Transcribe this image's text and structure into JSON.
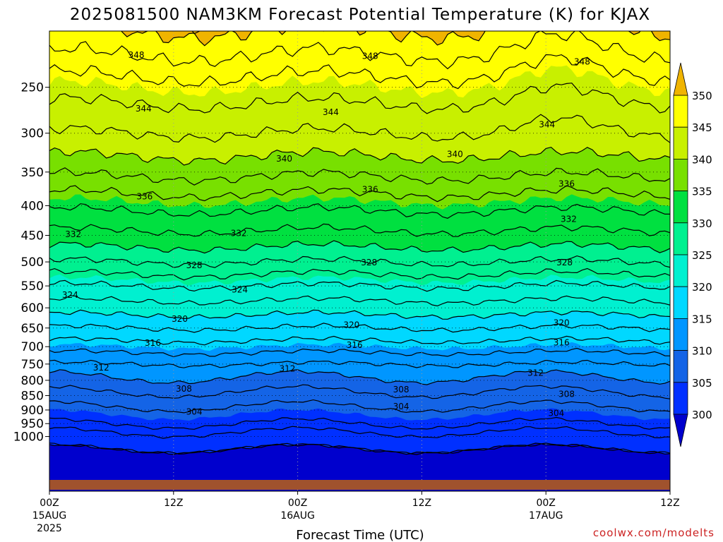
{
  "chart_data": {
    "type": "heatmap",
    "title": "2025081500 NAM3KM Forecast Potential Temperature (K) for KJAX",
    "xlabel": "Forecast Time (UTC)",
    "ylabel": "",
    "credit": "coolwx.com/modelts",
    "x_ticks": [
      {
        "hour": 0,
        "label": "00Z",
        "sub1": "15AUG",
        "sub2": "2025"
      },
      {
        "hour": 12,
        "label": "12Z",
        "sub1": "",
        "sub2": ""
      },
      {
        "hour": 24,
        "label": "00Z",
        "sub1": "16AUG",
        "sub2": ""
      },
      {
        "hour": 36,
        "label": "12Z",
        "sub1": "",
        "sub2": ""
      },
      {
        "hour": 48,
        "label": "00Z",
        "sub1": "17AUG",
        "sub2": ""
      },
      {
        "hour": 60,
        "label": "12Z",
        "sub1": "",
        "sub2": ""
      }
    ],
    "xlim": [
      0,
      60
    ],
    "y_axis": {
      "quantity": "pressure (hPa)",
      "scale": "log",
      "reversed": true,
      "ylim": [
        1025,
        200
      ],
      "ticks": [
        250,
        300,
        350,
        400,
        450,
        500,
        550,
        600,
        650,
        700,
        750,
        800,
        850,
        900,
        950,
        1000
      ]
    },
    "grid": "dotted",
    "colorbar": {
      "placement": "right",
      "ticks": [
        350,
        345,
        340,
        335,
        330,
        325,
        320,
        315,
        310,
        305,
        300
      ],
      "levels": [
        {
          "min": 350,
          "max": null,
          "color": "#f0b400"
        },
        {
          "min": 345,
          "max": 350,
          "color": "#ffff00"
        },
        {
          "min": 340,
          "max": 345,
          "color": "#c8f000"
        },
        {
          "min": 335,
          "max": 340,
          "color": "#78e000"
        },
        {
          "min": 330,
          "max": 335,
          "color": "#00e040"
        },
        {
          "min": 325,
          "max": 330,
          "color": "#00f090"
        },
        {
          "min": 320,
          "max": 325,
          "color": "#00f0d0"
        },
        {
          "min": 315,
          "max": 320,
          "color": "#00d8ff"
        },
        {
          "min": 310,
          "max": 315,
          "color": "#0096ff"
        },
        {
          "min": 305,
          "max": 310,
          "color": "#1464e6"
        },
        {
          "min": 300,
          "max": 305,
          "color": "#0030ff"
        },
        {
          "min": null,
          "max": 300,
          "color": "#0000cd"
        }
      ]
    },
    "ground_color": "#a0522d",
    "contour_interval": 2,
    "contour_labels": [
      {
        "value": "348",
        "hour": 8.4,
        "pressure": 220
      },
      {
        "value": "348",
        "hour": 31.0,
        "pressure": 221
      },
      {
        "value": "348",
        "hour": 51.5,
        "pressure": 226
      },
      {
        "value": "344",
        "hour": 9.1,
        "pressure": 272
      },
      {
        "value": "344",
        "hour": 27.2,
        "pressure": 276
      },
      {
        "value": "344",
        "hour": 48.1,
        "pressure": 290
      },
      {
        "value": "340",
        "hour": 22.7,
        "pressure": 332
      },
      {
        "value": "340",
        "hour": 39.2,
        "pressure": 326
      },
      {
        "value": "336",
        "hour": 9.2,
        "pressure": 386
      },
      {
        "value": "336",
        "hour": 31.0,
        "pressure": 375
      },
      {
        "value": "336",
        "hour": 50.0,
        "pressure": 367
      },
      {
        "value": "332",
        "hour": 2.3,
        "pressure": 448
      },
      {
        "value": "332",
        "hour": 18.3,
        "pressure": 446
      },
      {
        "value": "332",
        "hour": 50.2,
        "pressure": 422
      },
      {
        "value": "328",
        "hour": 14.0,
        "pressure": 507
      },
      {
        "value": "328",
        "hour": 30.9,
        "pressure": 501
      },
      {
        "value": "328",
        "hour": 49.8,
        "pressure": 501
      },
      {
        "value": "324",
        "hour": 2.0,
        "pressure": 570
      },
      {
        "value": "324",
        "hour": 18.4,
        "pressure": 558
      },
      {
        "value": "320",
        "hour": 12.6,
        "pressure": 627
      },
      {
        "value": "320",
        "hour": 29.2,
        "pressure": 642
      },
      {
        "value": "320",
        "hour": 49.5,
        "pressure": 637
      },
      {
        "value": "316",
        "hour": 10.0,
        "pressure": 690
      },
      {
        "value": "316",
        "hour": 29.5,
        "pressure": 696
      },
      {
        "value": "316",
        "hour": 49.5,
        "pressure": 689
      },
      {
        "value": "312",
        "hour": 5.0,
        "pressure": 761
      },
      {
        "value": "312",
        "hour": 23.0,
        "pressure": 764
      },
      {
        "value": "312",
        "hour": 47.0,
        "pressure": 777
      },
      {
        "value": "308",
        "hour": 13.0,
        "pressure": 828
      },
      {
        "value": "308",
        "hour": 34.0,
        "pressure": 830
      },
      {
        "value": "308",
        "hour": 50.0,
        "pressure": 845
      },
      {
        "value": "304",
        "hour": 14.0,
        "pressure": 907
      },
      {
        "value": "304",
        "hour": 34.0,
        "pressure": 888
      },
      {
        "value": "304",
        "hour": 49.0,
        "pressure": 912
      }
    ]
  }
}
